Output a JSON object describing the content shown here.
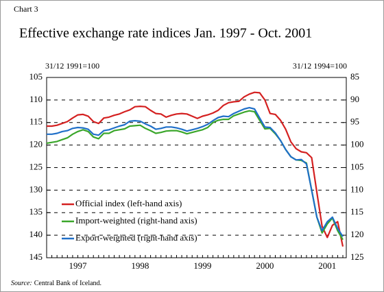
{
  "chart_data": {
    "type": "line",
    "label": "Chart 3",
    "title": "Effective exchange rate indices Jan. 1997 - Oct. 2001",
    "ylabel": "31/12 1991=100",
    "y2label": "31/12 1994=100",
    "source_label": "Source:",
    "source": "Central Bank of Iceland.",
    "categories": [
      null,
      null,
      null,
      null,
      null,
      null,
      "1997",
      null,
      null,
      null,
      null,
      null,
      null,
      null,
      null,
      null,
      null,
      null,
      "1998",
      null,
      null,
      null,
      null,
      null,
      null,
      null,
      null,
      null,
      null,
      null,
      "1999",
      null,
      null,
      null,
      null,
      null,
      null,
      null,
      null,
      null,
      null,
      null,
      "2000",
      null,
      null,
      null,
      null,
      null,
      null,
      null,
      null,
      null,
      null,
      null,
      "2001",
      null,
      null,
      null
    ],
    "ylim": [
      145,
      105
    ],
    "yticks": [
      105,
      110,
      115,
      120,
      125,
      130,
      135,
      140,
      145
    ],
    "y2lim": [
      125,
      85
    ],
    "y2ticks": [
      85,
      90,
      95,
      100,
      105,
      110,
      115,
      120,
      125
    ],
    "grid": true,
    "legend": "lower left",
    "series": [
      {
        "name": "Official index (left-hand axis)",
        "color": "#d42020",
        "values": [
          115.8,
          115.8,
          115.6,
          115.2,
          114.8,
          114.0,
          113.3,
          113.2,
          113.6,
          114.8,
          115.2,
          114.0,
          113.8,
          113.4,
          113.1,
          112.6,
          112.2,
          111.5,
          111.4,
          111.5,
          112.3,
          113.0,
          113.1,
          113.8,
          113.4,
          113.1,
          113.0,
          113.1,
          113.6,
          114.1,
          113.6,
          113.3,
          112.9,
          112.3,
          111.2,
          110.6,
          110.4,
          110.3,
          109.3,
          108.7,
          108.3,
          108.4,
          110.0,
          113.0,
          113.2,
          114.5,
          116.5,
          119.3,
          120.8,
          121.5,
          121.7,
          122.8,
          130.5,
          138.0,
          140.5,
          137.8,
          137.0,
          142.5
        ]
      },
      {
        "name": "Import-weighted (right-hand axis)",
        "color": "#3aa62a",
        "axis": "y2",
        "values": [
          99.6,
          99.4,
          99.2,
          98.8,
          98.4,
          97.6,
          97.0,
          96.6,
          97.0,
          98.2,
          98.6,
          97.4,
          97.4,
          96.8,
          96.6,
          96.4,
          95.8,
          95.7,
          95.6,
          96.3,
          96.8,
          97.4,
          97.2,
          96.9,
          96.8,
          96.8,
          97.1,
          97.5,
          97.2,
          96.9,
          96.6,
          96.1,
          95.0,
          94.5,
          94.3,
          94.3,
          93.5,
          93.1,
          92.7,
          92.4,
          92.6,
          94.5,
          96.4,
          96.3,
          97.5,
          99.0,
          101.0,
          102.6,
          103.3,
          103.4,
          104.0,
          110.0,
          116.0,
          119.5,
          117.5,
          116.2,
          119.0,
          121.0
        ]
      },
      {
        "name": "Export-weighted (right-hand axis)",
        "color": "#1f6fc8",
        "axis": "y2",
        "values": [
          97.6,
          97.6,
          97.4,
          97.0,
          96.8,
          96.3,
          96.1,
          96.2,
          96.5,
          97.6,
          97.8,
          96.8,
          96.6,
          96.2,
          95.8,
          95.5,
          94.7,
          94.6,
          94.7,
          95.3,
          95.8,
          96.5,
          96.3,
          96.0,
          96.0,
          96.2,
          96.5,
          96.9,
          96.6,
          96.3,
          95.9,
          95.4,
          94.6,
          93.9,
          93.6,
          93.7,
          93.0,
          92.5,
          92.0,
          91.7,
          92.0,
          94.0,
          96.0,
          96.1,
          97.3,
          99.0,
          101.0,
          102.6,
          103.3,
          103.2,
          104.2,
          110.0,
          116.0,
          119.0,
          117.0,
          116.0,
          118.5,
          120.3
        ]
      }
    ]
  }
}
